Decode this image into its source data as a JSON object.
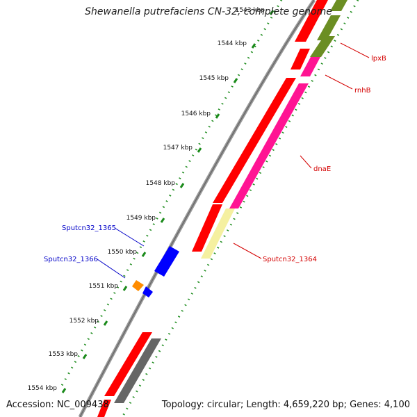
{
  "title": "Shewanella putrefaciens CN-32, complete genome",
  "footer": {
    "accession": "Accession: NC_009438",
    "topology": "Topology: circular; Length: 4,659,220 bp; Genes: 4,100"
  },
  "ticks": [
    "1543 kbp",
    "1544 kbp",
    "1545 kbp",
    "1546 kbp",
    "1547 kbp",
    "1548 kbp",
    "1549 kbp",
    "1550 kbp",
    "1551 kbp",
    "1552 kbp",
    "1553 kbp",
    "1554 kbp"
  ],
  "gene_labels": [
    {
      "text": "lpxB",
      "color": "#d40000"
    },
    {
      "text": "rnhB",
      "color": "#d40000"
    },
    {
      "text": "dnaE",
      "color": "#d40000"
    },
    {
      "text": "Sputcn32_1364",
      "color": "#d40000"
    },
    {
      "text": "Sputcn32_1365",
      "color": "#0000c8"
    },
    {
      "text": "Sputcn32_1366",
      "color": "#0000c8"
    }
  ],
  "colors": {
    "cds_red": "#ff0000",
    "rna_pink": "#ff1493",
    "olive": "#6b8e23",
    "pale_yellow": "#f5f0a0",
    "blue": "#0000ff",
    "orange": "#ff8c00",
    "gray": "#666666",
    "dots": "#1a8a1a"
  }
}
